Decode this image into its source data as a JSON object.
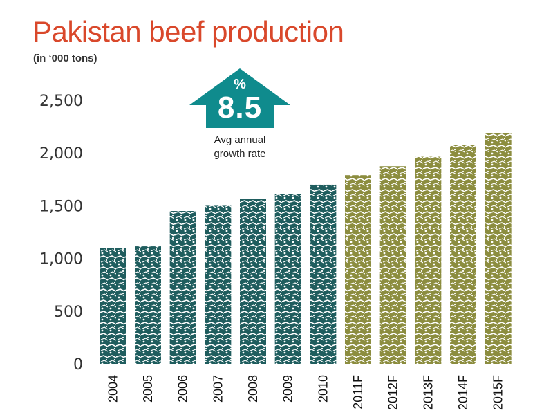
{
  "chart_data": {
    "type": "bar",
    "title": "Pakistan beef production",
    "subtitle": "(in ‘000 tons)",
    "categories": [
      "2004",
      "2005",
      "2006",
      "2007",
      "2008",
      "2009",
      "2010",
      "2011F",
      "2012F",
      "2013F",
      "2014F",
      "2015F"
    ],
    "values": [
      1100,
      1115,
      1450,
      1500,
      1565,
      1610,
      1700,
      1790,
      1875,
      1965,
      2080,
      2190
    ],
    "actual_color": "#1f5d5e",
    "forecast_color": "#8c8d3f",
    "ylim": [
      0,
      2500
    ],
    "yticks": [
      0,
      500,
      1000,
      1500,
      2000,
      2500
    ],
    "ytick_labels": [
      "0",
      "500",
      "1,000",
      "1,500",
      "2,000",
      "2,500"
    ],
    "grid": false,
    "annotation": {
      "symbol": "%",
      "value": "8.5",
      "line1": "Avg annual",
      "line2": "growth rate",
      "arrow_color": "#0f8b8d"
    }
  }
}
